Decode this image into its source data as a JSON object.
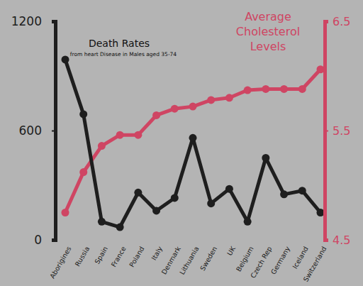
{
  "chart_data": {
    "type": "line",
    "annotations": [
      "from heart Disease in Males aged 35-74"
    ],
    "categories": [
      "Aborigines",
      "Russia",
      "Spain",
      "France",
      "Poland",
      "Italy",
      "Denmark",
      "Lithuania",
      "Sweden",
      "UK",
      "Belgium",
      "Czech Rep",
      "Germany",
      "Iceland",
      "Switzerland"
    ],
    "series": [
      {
        "name": "Death Rates",
        "color": "#1e1e1e",
        "marker": "circle",
        "values": [
          990,
          690,
          100,
          70,
          260,
          160,
          230,
          560,
          200,
          280,
          100,
          450,
          250,
          270,
          150
        ]
      },
      {
        "name": "Average Cholesterol Levels",
        "color": "#cf4563",
        "marker": "circle",
        "axis": "y2",
        "values": [
          4.75,
          5.12,
          5.36,
          5.46,
          5.46,
          5.64,
          5.7,
          5.72,
          5.78,
          5.8,
          5.87,
          5.88,
          5.88,
          5.88,
          6.06
        ]
      }
    ],
    "ylim": [
      0,
      1200
    ],
    "yticks": [
      0,
      600,
      1200
    ],
    "y2lim": [
      4.5,
      6.5
    ],
    "y2ticks": [
      4.5,
      5.5,
      6.5
    ],
    "grid": false
  }
}
